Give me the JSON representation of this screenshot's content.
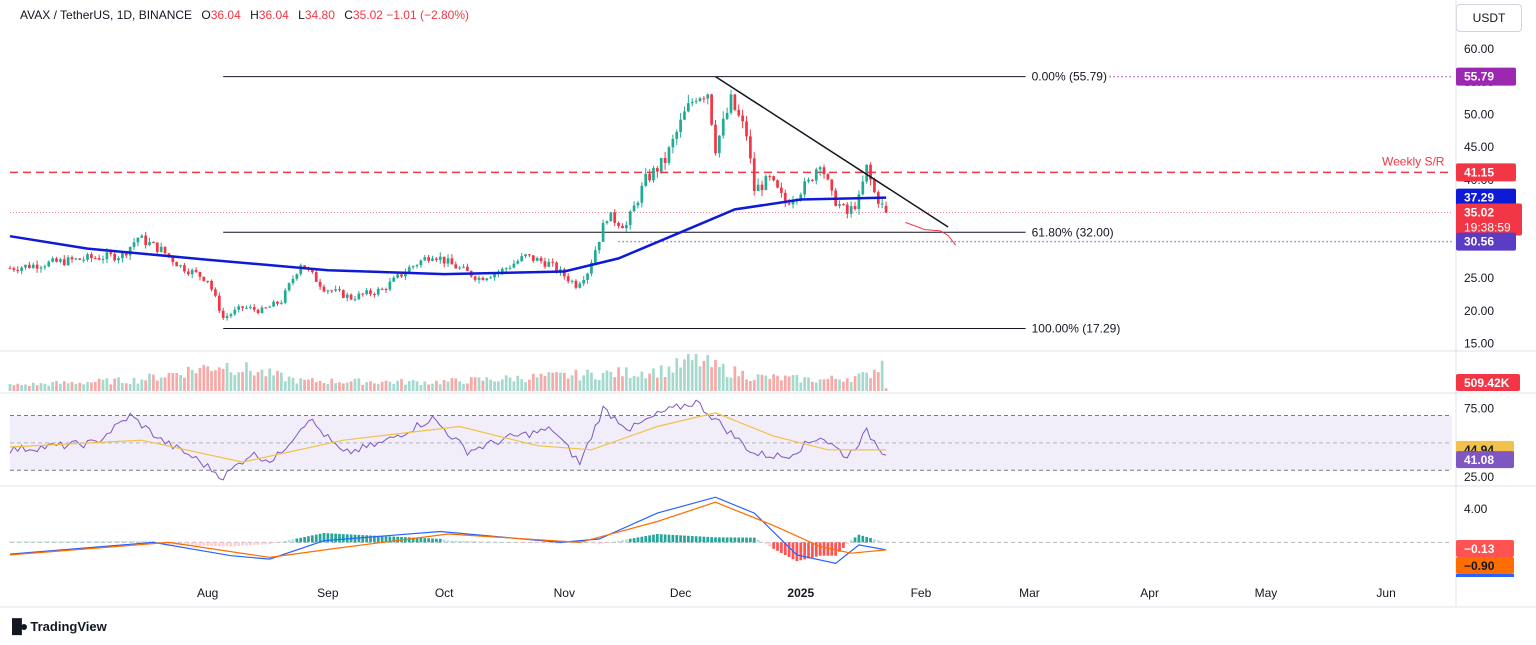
{
  "header": {
    "symbol": "AVAX / TetherUS, 1D, BINANCE",
    "open_label": "O",
    "open": "36.04",
    "high_label": "H",
    "high": "36.04",
    "low_label": "L",
    "low": "34.80",
    "close_label": "C",
    "close": "35.02",
    "change": "−1.01 (−2.80%)"
  },
  "currency_button": "USDT",
  "brand": {
    "logo_icon": "tradingview-logo-icon",
    "name": "TradingView"
  },
  "colors": {
    "up": "#22ab94",
    "down": "#f23645",
    "ma": "#0d1bd6",
    "rsi": "#7e57c2",
    "rsi_ma": "#f0c24b",
    "macd": "#2962ff",
    "signal": "#ff6d00",
    "weekly_sr": "#f23645",
    "fib55": "#9c27b0",
    "fib30": "#5b3cc4"
  },
  "chart_data": [
    {
      "type": "candlestick",
      "panel": "price",
      "ylim": [
        14,
        62
      ],
      "y_ticks": [
        "15.00",
        "20.00",
        "25.00",
        "30.00",
        "35.00",
        "40.00",
        "45.00",
        "50.00",
        "55.00",
        "60.00"
      ],
      "x_tick_labels": [
        "Aug",
        "Sep",
        "Oct",
        "Nov",
        "Dec",
        "2025",
        "Feb",
        "Mar",
        "Apr",
        "May",
        "Jun"
      ],
      "x_tick_dates": [
        "2024-08-01",
        "2024-09-01",
        "2024-10-01",
        "2024-11-01",
        "2024-12-01",
        "2025-01-01",
        "2025-02-01",
        "2025-03-01",
        "2025-04-01",
        "2025-05-01",
        "2025-06-01"
      ],
      "x_range": [
        "2024-06-11",
        "2025-06-18"
      ],
      "close_series": [
        [
          "2024-06-11",
          26.5
        ],
        [
          "2024-06-20",
          27.2
        ],
        [
          "2024-07-01",
          28.0
        ],
        [
          "2024-07-10",
          28.5
        ],
        [
          "2024-07-14",
          31.2
        ],
        [
          "2024-07-20",
          29.3
        ],
        [
          "2024-07-25",
          26.8
        ],
        [
          "2024-08-01",
          24.8
        ],
        [
          "2024-08-05",
          18.9
        ],
        [
          "2024-08-10",
          20.5
        ],
        [
          "2024-08-15",
          20.0
        ],
        [
          "2024-08-20",
          21.5
        ],
        [
          "2024-08-25",
          27.3
        ],
        [
          "2024-08-31",
          23.5
        ],
        [
          "2024-09-07",
          22.0
        ],
        [
          "2024-09-15",
          23.2
        ],
        [
          "2024-09-22",
          26.5
        ],
        [
          "2024-09-28",
          28.7
        ],
        [
          "2024-10-03",
          27.0
        ],
        [
          "2024-10-10",
          25.0
        ],
        [
          "2024-10-16",
          26.2
        ],
        [
          "2024-10-22",
          28.3
        ],
        [
          "2024-10-28",
          27.2
        ],
        [
          "2024-11-04",
          24.0
        ],
        [
          "2024-11-07",
          26.0
        ],
        [
          "2024-11-12",
          34.5
        ],
        [
          "2024-11-17",
          33.0
        ],
        [
          "2024-11-22",
          40.0
        ],
        [
          "2024-11-27",
          43.0
        ],
        [
          "2024-12-02",
          50.0
        ],
        [
          "2024-12-05",
          53.0
        ],
        [
          "2024-12-08",
          53.5
        ],
        [
          "2024-12-10",
          45.0
        ],
        [
          "2024-12-14",
          52.0
        ],
        [
          "2024-12-18",
          47.0
        ],
        [
          "2024-12-20",
          38.5
        ],
        [
          "2024-12-24",
          40.0
        ],
        [
          "2024-12-28",
          36.5
        ],
        [
          "2025-01-03",
          39.5
        ],
        [
          "2025-01-06",
          43.0
        ],
        [
          "2025-01-09",
          37.5
        ],
        [
          "2025-01-13",
          34.8
        ],
        [
          "2025-01-16",
          37.0
        ],
        [
          "2025-01-18",
          41.8
        ],
        [
          "2025-01-20",
          38.0
        ],
        [
          "2025-01-22",
          36.0
        ],
        [
          "2025-01-23",
          35.02
        ]
      ],
      "ma_series": [
        [
          "2024-06-11",
          31.4
        ],
        [
          "2024-07-01",
          29.5
        ],
        [
          "2024-08-01",
          27.8
        ],
        [
          "2024-09-01",
          26.2
        ],
        [
          "2024-10-01",
          25.6
        ],
        [
          "2024-11-01",
          26.0
        ],
        [
          "2024-11-15",
          28.0
        ],
        [
          "2024-12-01",
          32.0
        ],
        [
          "2024-12-15",
          35.5
        ],
        [
          "2025-01-01",
          37.0
        ],
        [
          "2025-01-23",
          37.29
        ]
      ],
      "annotations": {
        "fib_0": "0.00% (55.79)",
        "fib_618": "61.80% (32.00)",
        "fib_100": "100.00% (17.29)",
        "weekly_sr_label": "Weekly S/R",
        "fib_0_value": 55.79,
        "fib_618_value": 32.0,
        "fib_100_value": 17.29,
        "weekly_sr_value": 41.15,
        "dotted_support_value": 30.56,
        "fib_line_start": "2024-08-05",
        "fib_line_end": "2025-02-28"
      },
      "trendline": [
        [
          "2024-12-10",
          55.79
        ],
        [
          "2025-02-08",
          32.8
        ]
      ],
      "projection": [
        [
          "2025-01-28",
          33.5
        ],
        [
          "2025-02-02",
          32.4
        ],
        [
          "2025-02-06",
          32.2
        ],
        [
          "2025-02-08",
          31.5
        ],
        [
          "2025-02-10",
          30.0
        ]
      ],
      "price_labels": {
        "fib_55": "55.79",
        "weekly_sr": "41.15",
        "ma": "37.29",
        "last": "35.02",
        "countdown": "19:38:59",
        "support": "30.56"
      }
    },
    {
      "type": "bar",
      "panel": "volume",
      "last_label": "509.42K",
      "profile": [
        [
          "2024-06-11",
          0.18
        ],
        [
          "2024-07-14",
          0.35
        ],
        [
          "2024-08-05",
          0.85
        ],
        [
          "2024-08-25",
          0.32
        ],
        [
          "2024-09-28",
          0.28
        ],
        [
          "2024-11-12",
          0.55
        ],
        [
          "2024-11-27",
          0.65
        ],
        [
          "2024-12-05",
          1.0
        ],
        [
          "2024-12-10",
          0.75
        ],
        [
          "2024-12-20",
          0.45
        ],
        [
          "2025-01-06",
          0.35
        ],
        [
          "2025-01-18",
          0.48
        ],
        [
          "2025-01-22",
          0.9
        ],
        [
          "2025-01-23",
          0.12
        ]
      ]
    },
    {
      "type": "line",
      "panel": "rsi",
      "ylim": [
        20,
        85
      ],
      "y_ticks": [
        "25.00",
        "75.00"
      ],
      "band": [
        30,
        70
      ],
      "mid": 50,
      "rsi_label": "41.08",
      "rsi_ma_label": "44.94",
      "rsi_series": [
        [
          "2024-06-11",
          45
        ],
        [
          "2024-07-03",
          50
        ],
        [
          "2024-07-12",
          70
        ],
        [
          "2024-07-20",
          52
        ],
        [
          "2024-07-28",
          40
        ],
        [
          "2024-08-05",
          25
        ],
        [
          "2024-08-12",
          42
        ],
        [
          "2024-08-18",
          37
        ],
        [
          "2024-08-27",
          68
        ],
        [
          "2024-09-05",
          42
        ],
        [
          "2024-09-15",
          50
        ],
        [
          "2024-09-28",
          68
        ],
        [
          "2024-10-07",
          44
        ],
        [
          "2024-10-18",
          54
        ],
        [
          "2024-10-29",
          60
        ],
        [
          "2024-11-05",
          35
        ],
        [
          "2024-11-11",
          75
        ],
        [
          "2024-11-18",
          60
        ],
        [
          "2024-11-26",
          72
        ],
        [
          "2024-12-05",
          80
        ],
        [
          "2024-12-12",
          62
        ],
        [
          "2024-12-20",
          42
        ],
        [
          "2024-12-28",
          40
        ],
        [
          "2025-01-06",
          55
        ],
        [
          "2025-01-13",
          40
        ],
        [
          "2025-01-18",
          58
        ],
        [
          "2025-01-23",
          41.08
        ]
      ],
      "rsi_ma_series": [
        [
          "2024-06-11",
          47
        ],
        [
          "2024-07-15",
          52
        ],
        [
          "2024-08-10",
          36
        ],
        [
          "2024-09-05",
          52
        ],
        [
          "2024-10-05",
          62
        ],
        [
          "2024-10-25",
          48
        ],
        [
          "2024-11-08",
          45
        ],
        [
          "2024-11-25",
          62
        ],
        [
          "2024-12-10",
          72
        ],
        [
          "2024-12-25",
          55
        ],
        [
          "2025-01-08",
          45
        ],
        [
          "2025-01-23",
          44.94
        ]
      ]
    },
    {
      "type": "line",
      "panel": "macd",
      "ylim": [
        -4.5,
        6.5
      ],
      "y_ticks": [
        "4.00"
      ],
      "histogram_label": "−0.13",
      "signal_label": "−0.90",
      "macd_series": [
        [
          "2024-06-11",
          -1.4
        ],
        [
          "2024-07-18",
          0.0
        ],
        [
          "2024-08-07",
          -1.6
        ],
        [
          "2024-08-17",
          -2.0
        ],
        [
          "2024-08-31",
          0.2
        ],
        [
          "2024-09-30",
          1.3
        ],
        [
          "2024-10-31",
          0.0
        ],
        [
          "2024-11-10",
          0.4
        ],
        [
          "2024-11-25",
          3.5
        ],
        [
          "2024-12-10",
          5.4
        ],
        [
          "2024-12-20",
          3.5
        ],
        [
          "2024-12-31",
          -1.5
        ],
        [
          "2025-01-10",
          -2.5
        ],
        [
          "2025-01-16",
          -0.3
        ],
        [
          "2025-01-23",
          -0.9
        ]
      ],
      "signal_series": [
        [
          "2024-06-11",
          -1.5
        ],
        [
          "2024-07-22",
          0.0
        ],
        [
          "2024-08-17",
          -1.8
        ],
        [
          "2024-09-05",
          -0.6
        ],
        [
          "2024-10-02",
          1.0
        ],
        [
          "2024-11-05",
          0.0
        ],
        [
          "2024-11-25",
          2.5
        ],
        [
          "2024-12-10",
          4.8
        ],
        [
          "2024-12-25",
          2.0
        ],
        [
          "2025-01-06",
          -0.5
        ],
        [
          "2025-01-14",
          -1.3
        ],
        [
          "2025-01-23",
          -0.9
        ]
      ]
    }
  ]
}
